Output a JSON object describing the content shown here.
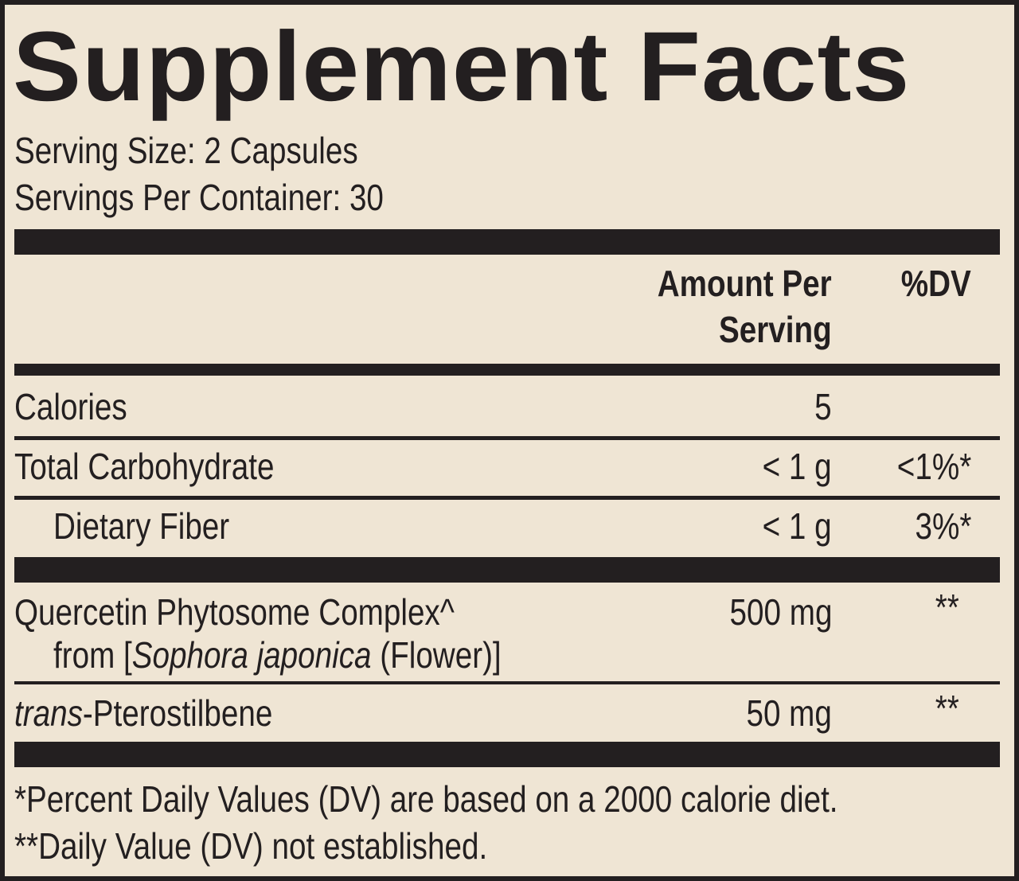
{
  "title": "Supplement Facts",
  "serving_size": "Serving Size: 2 Capsules",
  "servings_per_container": "Servings Per Container: 30",
  "header": {
    "amount_line1": "Amount Per",
    "amount_line2": "Serving",
    "dv": "%DV"
  },
  "rows": [
    {
      "name": "Calories",
      "amount": "5",
      "dv": ""
    },
    {
      "name": "Total Carbohydrate",
      "amount": "< 1 g",
      "dv": "<1%*"
    },
    {
      "name": "Dietary Fiber",
      "amount": "< 1 g",
      "dv": "3%*"
    },
    {
      "name": "Quercetin Phytosome Complex^",
      "sub_prefix": "from [",
      "sub_italic": "Sophora japonica",
      "sub_suffix": " (Flower)]",
      "amount": "500 mg",
      "dv": "**"
    },
    {
      "name_italic": "trans",
      "name": "-Pterostilbene",
      "amount": "50 mg",
      "dv": "**"
    }
  ],
  "footnotes": [
    "*Percent Daily Values (DV) are based on a 2000 calorie diet.",
    "**Daily Value (DV) not established."
  ],
  "colors": {
    "background": "#efe5d4",
    "ink": "#231f20"
  }
}
